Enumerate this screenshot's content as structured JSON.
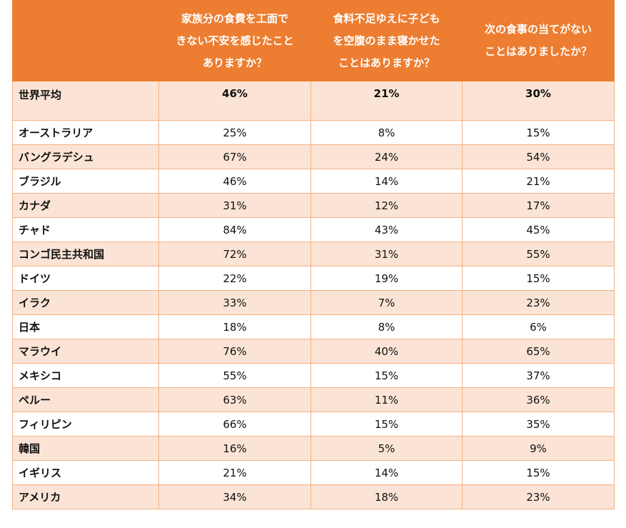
{
  "table": {
    "header": [
      [
        "家族分の食費を工面で",
        "きない不安を感じたこと",
        "ありますか？"
      ],
      [
        "食料不足ゆえに子ども",
        "を空腹のまま寝かせた",
        "ことはありますか？"
      ],
      [
        "次の食事の当てがない",
        "ことはありましたか？"
      ]
    ],
    "rows": [
      [
        "世界平均",
        "46%",
        "21%",
        "30%"
      ],
      [
        "オーストラリア",
        "25%",
        "8%",
        "15%"
      ],
      [
        "バングラデシュ",
        "67%",
        "24%",
        "54%"
      ],
      [
        "ブラジル",
        "46%",
        "14%",
        "21%"
      ],
      [
        "カナダ",
        "31%",
        "12%",
        "17%"
      ],
      [
        "チャド",
        "84%",
        "43%",
        "45%"
      ],
      [
        "コンゴ民主共和国",
        "72%",
        "31%",
        "55%"
      ],
      [
        "ドイツ",
        "22%",
        "19%",
        "15%"
      ],
      [
        "イラク",
        "33%",
        "7%",
        "23%"
      ],
      [
        "日本",
        "18%",
        "8%",
        "6%"
      ],
      [
        "マラウイ",
        "76%",
        "40%",
        "65%"
      ],
      [
        "メキシコ",
        "55%",
        "15%",
        "37%"
      ],
      [
        "ペルー",
        "63%",
        "11%",
        "36%"
      ],
      [
        "フィリピン",
        "66%",
        "15%",
        "35%"
      ],
      [
        "韓国",
        "16%",
        "5%",
        "9%"
      ],
      [
        "イギリス",
        "21%",
        "14%",
        "15%"
      ],
      [
        "アメリカ",
        "34%",
        "18%",
        "23%"
      ]
    ]
  }
}
